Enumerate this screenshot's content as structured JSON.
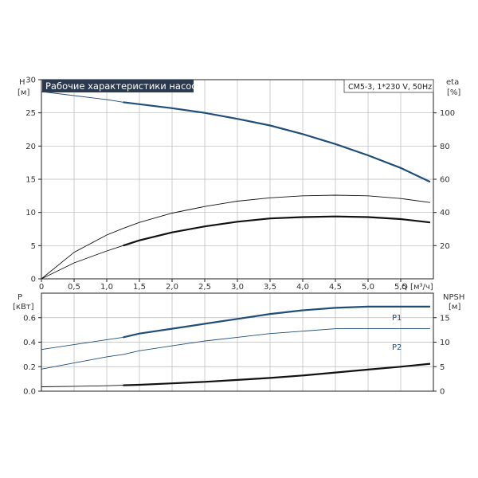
{
  "chart_data": [
    {
      "type": "line",
      "title": "Рабочие характеристики насоса",
      "model_label": "CM5-3, 1*230 V, 50Hz",
      "x_axis": {
        "label": "Q [м³/ч]",
        "ticks": [
          "0",
          "0,5",
          "1,0",
          "1,5",
          "2,0",
          "2,5",
          "3,0",
          "3,5",
          "4,0",
          "4,5",
          "5,0",
          "5,5"
        ],
        "range": [
          0,
          6.0
        ]
      },
      "y_left": {
        "label": "H",
        "unit": "[м]",
        "ticks": [
          "0",
          "5",
          "10",
          "15",
          "20",
          "25",
          "30"
        ],
        "range": [
          0,
          30
        ]
      },
      "y_right": {
        "label": "eta",
        "unit": "[%]",
        "ticks": [
          "20",
          "40",
          "60",
          "80",
          "100"
        ],
        "range": [
          0,
          120
        ]
      },
      "grid": true,
      "series": [
        {
          "axis": "left",
          "x": [
            0,
            0.5,
            1.0,
            1.25,
            1.5,
            2.0,
            2.5,
            3.0,
            3.5,
            4.0,
            4.5,
            5.0,
            5.5,
            5.95
          ],
          "values": [
            28.2,
            27.6,
            27.0,
            26.6,
            26.3,
            25.7,
            25.0,
            24.1,
            23.1,
            21.8,
            20.3,
            18.6,
            16.7,
            14.6
          ],
          "color": "#1f4e79",
          "highlight_from": 1.25
        },
        {
          "axis": "left",
          "x": [
            0,
            0.5,
            1.0,
            1.25,
            1.5,
            2.0,
            2.5,
            3.0,
            3.5,
            4.0,
            4.5,
            5.0,
            5.5,
            5.95
          ],
          "values": [
            0,
            4.0,
            6.6,
            7.6,
            8.5,
            9.9,
            10.9,
            11.7,
            12.2,
            12.5,
            12.6,
            12.5,
            12.1,
            11.5
          ],
          "color": "#111111",
          "highlight_from": 99
        },
        {
          "axis": "left",
          "x": [
            0,
            0.5,
            1.0,
            1.25,
            1.5,
            2.0,
            2.5,
            3.0,
            3.5,
            4.0,
            4.5,
            5.0,
            5.5,
            5.95
          ],
          "values": [
            0,
            2.4,
            4.2,
            5.0,
            5.8,
            7.0,
            7.9,
            8.6,
            9.1,
            9.3,
            9.4,
            9.3,
            9.0,
            8.5
          ],
          "color": "#111111",
          "highlight_from": 1.25
        }
      ]
    },
    {
      "type": "line",
      "x_axis": {
        "range": [
          0,
          6.0
        ]
      },
      "y_left": {
        "label": "P",
        "unit": "[кВт]",
        "ticks": [
          "0.0",
          "0.2",
          "0.4",
          "0.6"
        ],
        "range": [
          0,
          0.8
        ]
      },
      "y_right": {
        "label": "NPSH",
        "unit": "[м]",
        "ticks": [
          "0",
          "5",
          "10",
          "15"
        ],
        "range": [
          0,
          20
        ]
      },
      "grid": true,
      "series": [
        {
          "name": "P1",
          "axis": "left",
          "x": [
            0,
            0.5,
            1.0,
            1.25,
            1.5,
            2.0,
            2.5,
            3.0,
            3.5,
            4.0,
            4.5,
            5.0,
            5.5,
            5.95
          ],
          "values": [
            0.34,
            0.38,
            0.42,
            0.44,
            0.47,
            0.51,
            0.55,
            0.59,
            0.63,
            0.66,
            0.68,
            0.69,
            0.69,
            0.69
          ],
          "color": "#1f4e79",
          "highlight_from": 1.25
        },
        {
          "name": "P2",
          "axis": "left",
          "x": [
            0,
            0.5,
            1.0,
            1.25,
            1.5,
            2.0,
            2.5,
            3.0,
            3.5,
            4.0,
            4.5,
            5.0,
            5.5,
            5.95
          ],
          "values": [
            0.18,
            0.23,
            0.28,
            0.3,
            0.33,
            0.37,
            0.41,
            0.44,
            0.47,
            0.49,
            0.51,
            0.51,
            0.51,
            0.51
          ],
          "color": "#1f4e79",
          "highlight_from": 99
        },
        {
          "axis": "right",
          "x": [
            0,
            0.5,
            1.0,
            1.25,
            1.5,
            2.0,
            2.5,
            3.0,
            3.5,
            4.0,
            4.5,
            5.0,
            5.5,
            5.95
          ],
          "values": [
            0.9,
            1.0,
            1.1,
            1.2,
            1.3,
            1.6,
            1.9,
            2.3,
            2.7,
            3.2,
            3.8,
            4.4,
            5.0,
            5.6
          ],
          "color": "#111111",
          "highlight_from": 1.25
        }
      ]
    }
  ]
}
